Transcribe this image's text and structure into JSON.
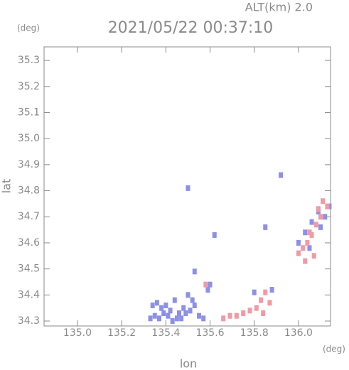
{
  "chart_data": {
    "type": "scatter",
    "title": "2021/05/22 00:37:10",
    "subtitle": "ALT(km) 2.0",
    "y_unit": "(deg)",
    "x_unit": "(deg)",
    "y_label": "lat",
    "x_label": "lon",
    "xlim": [
      134.849,
      136.145
    ],
    "ylim": [
      34.281,
      35.352
    ],
    "xticks": [
      {
        "value": 135,
        "label": "135.0"
      },
      135.2,
      135.4,
      135.6,
      135.8,
      {
        "value": 136,
        "label": "136.0"
      }
    ],
    "yticks": [
      34.3,
      34.4,
      34.5,
      34.6,
      34.7,
      34.8,
      34.9,
      {
        "value": 35,
        "label": "35.0"
      },
      35.1,
      35.2,
      35.3
    ],
    "series": [
      {
        "color": "#8c90e6",
        "x": [
          135.33,
          135.35,
          135.37,
          135.39,
          135.41,
          135.34,
          135.36,
          135.38,
          135.4,
          135.42,
          135.44,
          135.46,
          135.48,
          135.43,
          135.45,
          135.47,
          135.5,
          135.52,
          135.49,
          135.51,
          135.53,
          135.55,
          135.57,
          135.59,
          135.6,
          135.5,
          135.62,
          135.53,
          135.92,
          135.85,
          135.8,
          135.88,
          136.0,
          136.03,
          136.06,
          136.09,
          136.12,
          136.14,
          136.05,
          136.1
        ],
        "values": [
          34.31,
          34.32,
          34.31,
          34.33,
          34.32,
          34.36,
          34.37,
          34.35,
          34.36,
          34.34,
          34.38,
          34.33,
          34.35,
          34.3,
          34.31,
          34.31,
          34.4,
          34.38,
          34.33,
          34.34,
          34.36,
          34.32,
          34.31,
          34.42,
          34.44,
          34.81,
          34.63,
          34.49,
          34.86,
          34.66,
          34.41,
          34.42,
          34.6,
          34.64,
          34.68,
          34.72,
          34.7,
          34.74,
          34.58,
          34.66
        ]
      },
      {
        "color": "#f09aa4",
        "x": [
          135.58,
          135.66,
          135.69,
          135.72,
          135.75,
          135.78,
          135.81,
          135.83,
          135.85,
          135.87,
          135.84,
          136.0,
          136.02,
          136.04,
          136.06,
          136.08,
          136.1,
          136.07,
          136.09,
          136.11,
          136.13,
          136.05,
          136.03
        ],
        "values": [
          34.44,
          34.31,
          34.32,
          34.32,
          34.33,
          34.34,
          34.35,
          34.38,
          34.41,
          34.37,
          34.33,
          34.56,
          34.58,
          34.6,
          34.63,
          34.67,
          34.7,
          34.55,
          34.73,
          34.76,
          34.74,
          34.64,
          34.53
        ]
      }
    ]
  }
}
